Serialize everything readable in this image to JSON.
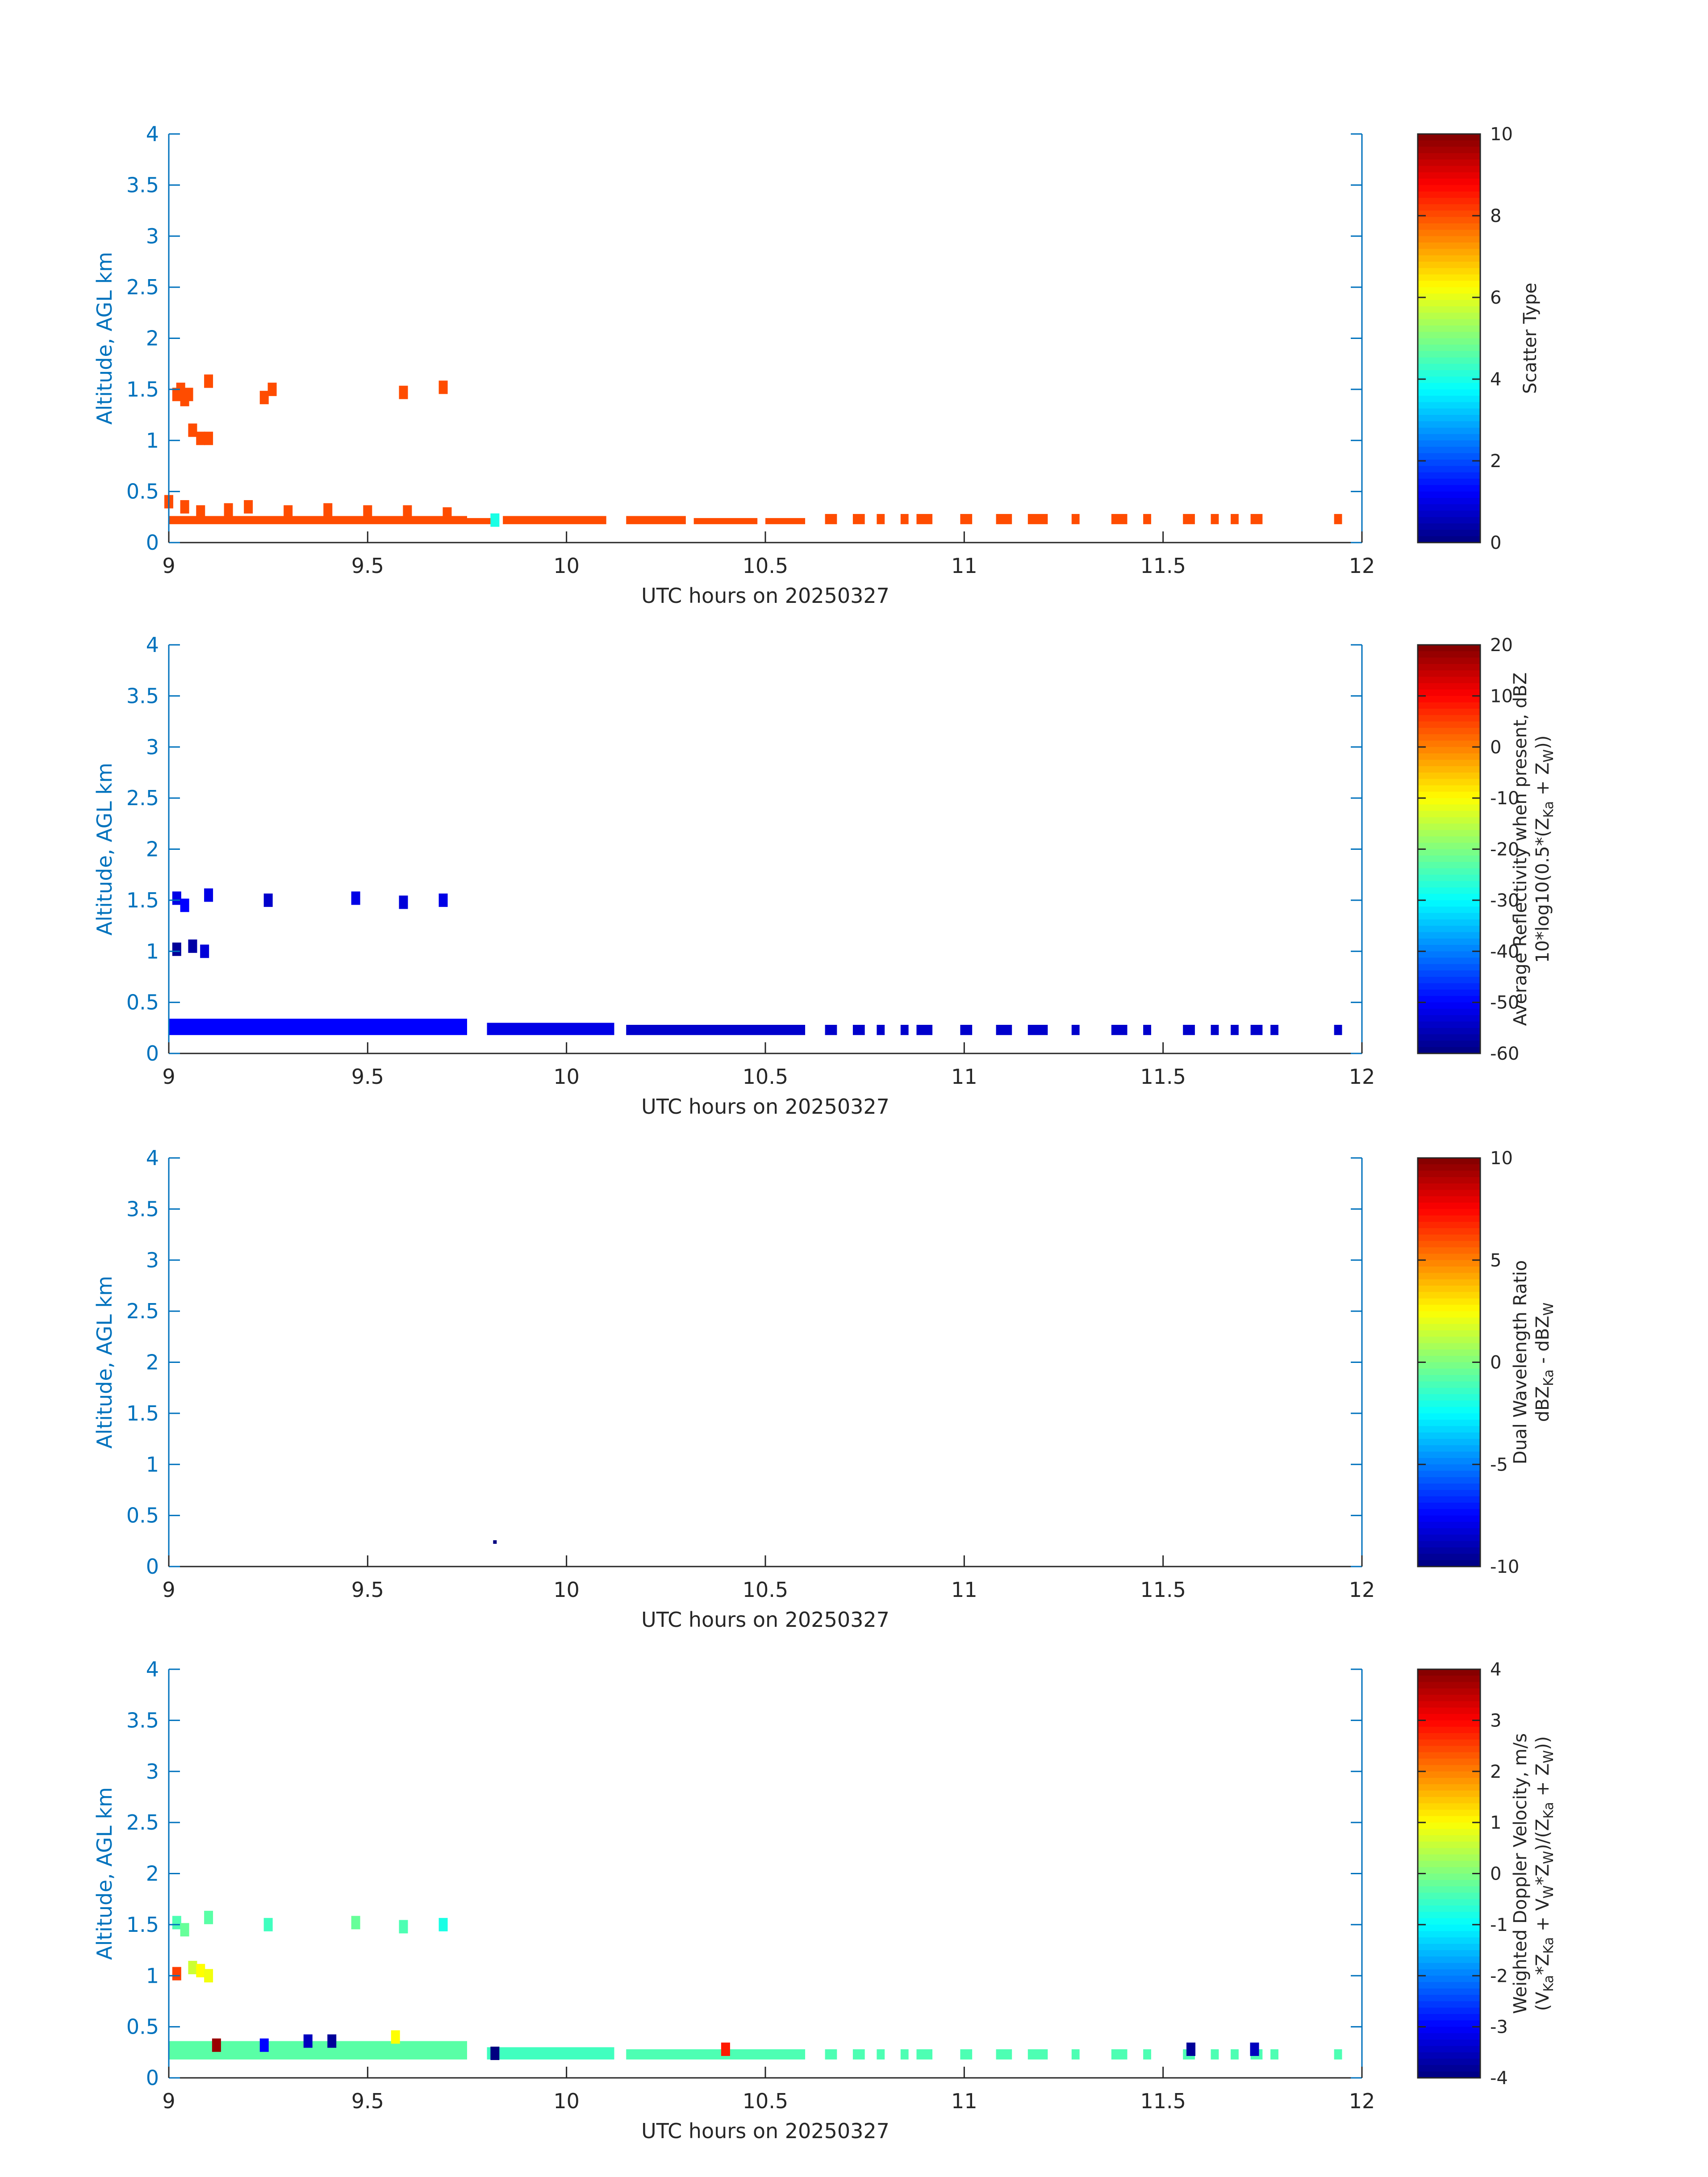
{
  "chart_data": [
    {
      "type": "heatmap",
      "xlabel": "UTC hours on 20250327",
      "ylabel": "Altitude, AGL km",
      "xlim": [
        9,
        12
      ],
      "ylim": [
        0,
        4
      ],
      "xticks": [
        "9",
        "9.5",
        "10",
        "10.5",
        "11",
        "11.5",
        "12"
      ],
      "yticks": [
        "0",
        "0.5",
        "1",
        "1.5",
        "2",
        "2.5",
        "3",
        "3.5",
        "4"
      ],
      "colorbar": {
        "label_lines": [
          "Scatter Type"
        ],
        "clim": [
          0,
          10
        ],
        "ticks": [
          "0",
          "2",
          "4",
          "6",
          "8",
          "10"
        ]
      },
      "cells": [
        [
          9.02,
          1.45,
          8
        ],
        [
          9.03,
          1.5,
          8
        ],
        [
          9.04,
          1.4,
          8
        ],
        [
          9.05,
          1.45,
          8
        ],
        [
          9.1,
          1.58,
          8
        ],
        [
          9.24,
          1.42,
          8
        ],
        [
          9.26,
          1.5,
          8
        ],
        [
          9.59,
          1.47,
          8
        ],
        [
          9.69,
          1.52,
          8
        ],
        [
          9.06,
          1.1,
          8
        ],
        [
          9.08,
          1.02,
          8
        ],
        [
          9.1,
          1.02,
          8
        ],
        [
          9.0,
          0.4,
          8
        ],
        [
          9.04,
          0.35,
          8
        ],
        [
          9.08,
          0.3,
          8
        ],
        [
          9.15,
          0.32,
          8
        ],
        [
          9.2,
          0.35,
          8
        ],
        [
          9.3,
          0.3,
          8
        ],
        [
          9.4,
          0.32,
          8
        ],
        [
          9.5,
          0.3,
          8
        ],
        [
          9.6,
          0.3,
          8
        ],
        [
          9.7,
          0.28,
          8
        ],
        [
          9.82,
          0.22,
          4
        ]
      ],
      "bands": [
        [
          9.0,
          9.75,
          0.18,
          0.26,
          8
        ],
        [
          9.75,
          9.82,
          0.18,
          0.24,
          8
        ],
        [
          9.84,
          10.1,
          0.18,
          0.26,
          8
        ],
        [
          10.15,
          10.3,
          0.18,
          0.26,
          8
        ],
        [
          10.32,
          10.48,
          0.18,
          0.24,
          8
        ],
        [
          10.5,
          10.6,
          0.18,
          0.24,
          8
        ]
      ],
      "segments": [
        [
          10.65,
          10.68
        ],
        [
          10.72,
          10.75
        ],
        [
          10.78,
          10.8
        ],
        [
          10.84,
          10.86
        ],
        [
          10.88,
          10.92
        ],
        [
          10.99,
          11.02
        ],
        [
          11.08,
          11.12
        ],
        [
          11.16,
          11.21
        ],
        [
          11.27,
          11.29
        ],
        [
          11.37,
          11.41
        ],
        [
          11.45,
          11.47
        ],
        [
          11.55,
          11.58
        ],
        [
          11.62,
          11.64
        ],
        [
          11.67,
          11.69
        ],
        [
          11.72,
          11.75
        ],
        [
          11.93,
          11.95
        ]
      ]
    },
    {
      "type": "heatmap",
      "xlabel": "UTC hours on 20250327",
      "ylabel": "Altitude, AGL km",
      "xlim": [
        9,
        12
      ],
      "ylim": [
        0,
        4
      ],
      "xticks": [
        "9",
        "9.5",
        "10",
        "10.5",
        "11",
        "11.5",
        "12"
      ],
      "yticks": [
        "0",
        "0.5",
        "1",
        "1.5",
        "2",
        "2.5",
        "3",
        "3.5",
        "4"
      ],
      "colorbar": {
        "label_lines": [
          "Average Reflectivity when present, dBZ",
          "10*log10(0.5*(Z",
          "Ka",
          " + Z",
          "W",
          "))"
        ],
        "clim": [
          -60,
          20
        ],
        "ticks": [
          "-60",
          "-50",
          "-40",
          "-30",
          "-20",
          "-10",
          "0",
          "10",
          "20"
        ]
      },
      "cells": [
        [
          9.02,
          1.52,
          -52
        ],
        [
          9.04,
          1.45,
          -50
        ],
        [
          9.1,
          1.55,
          -52
        ],
        [
          9.25,
          1.5,
          -54
        ],
        [
          9.47,
          1.52,
          -52
        ],
        [
          9.59,
          1.48,
          -53
        ],
        [
          9.69,
          1.5,
          -52
        ],
        [
          9.02,
          1.02,
          -58
        ],
        [
          9.06,
          1.05,
          -57
        ],
        [
          9.09,
          1.0,
          -53
        ]
      ],
      "bands": [
        [
          9.0,
          9.75,
          0.18,
          0.34,
          -50
        ],
        [
          9.8,
          10.12,
          0.18,
          0.3,
          -52
        ],
        [
          10.15,
          10.6,
          0.18,
          0.28,
          -54
        ]
      ],
      "segments": [
        [
          10.65,
          10.68
        ],
        [
          10.72,
          10.75
        ],
        [
          10.78,
          10.8
        ],
        [
          10.84,
          10.86
        ],
        [
          10.88,
          10.92
        ],
        [
          10.99,
          11.02
        ],
        [
          11.08,
          11.12
        ],
        [
          11.16,
          11.21
        ],
        [
          11.27,
          11.29
        ],
        [
          11.37,
          11.41
        ],
        [
          11.45,
          11.47
        ],
        [
          11.55,
          11.58
        ],
        [
          11.62,
          11.64
        ],
        [
          11.67,
          11.69
        ],
        [
          11.72,
          11.75
        ],
        [
          11.77,
          11.79
        ],
        [
          11.93,
          11.95
        ]
      ]
    },
    {
      "type": "heatmap",
      "xlabel": "UTC hours on 20250327",
      "ylabel": "Altitude, AGL km",
      "xlim": [
        9,
        12
      ],
      "ylim": [
        0,
        4
      ],
      "xticks": [
        "9",
        "9.5",
        "10",
        "10.5",
        "11",
        "11.5",
        "12"
      ],
      "yticks": [
        "0",
        "0.5",
        "1",
        "1.5",
        "2",
        "2.5",
        "3",
        "3.5",
        "4"
      ],
      "colorbar": {
        "label_lines": [
          "Dual Wavelength Ratio",
          "dBZ",
          "Ka",
          " - dBZ",
          "W"
        ],
        "clim": [
          -10,
          10
        ],
        "ticks": [
          "-10",
          "-5",
          "0",
          "5",
          "10"
        ]
      },
      "cells": [
        [
          9.82,
          0.24,
          -10
        ]
      ],
      "bands": [],
      "segments": []
    },
    {
      "type": "heatmap",
      "xlabel": "UTC hours on 20250327",
      "ylabel": "Altitude, AGL km",
      "xlim": [
        9,
        12
      ],
      "ylim": [
        0,
        4
      ],
      "xticks": [
        "9",
        "9.5",
        "10",
        "10.5",
        "11",
        "11.5",
        "12"
      ],
      "yticks": [
        "0",
        "0.5",
        "1",
        "1.5",
        "2",
        "2.5",
        "3",
        "3.5",
        "4"
      ],
      "colorbar": {
        "label_lines": [
          "Weighted Doppler Velocity, m/s",
          "(V",
          "Ka",
          "*Z",
          "Ka",
          " + V",
          "W",
          "*Z",
          "W",
          ")/(Z",
          "Ka",
          " + Z",
          "W",
          "))"
        ],
        "clim": [
          -4,
          4
        ],
        "ticks": [
          "-4",
          "-3",
          "-2",
          "-1",
          "0",
          "1",
          "2",
          "3",
          "4"
        ]
      },
      "cells": [
        [
          9.02,
          1.52,
          -0.4
        ],
        [
          9.04,
          1.45,
          -0.2
        ],
        [
          9.1,
          1.57,
          -0.3
        ],
        [
          9.25,
          1.5,
          -0.5
        ],
        [
          9.47,
          1.52,
          -0.2
        ],
        [
          9.59,
          1.48,
          -0.4
        ],
        [
          9.69,
          1.5,
          -0.8
        ],
        [
          9.02,
          1.02,
          2.5
        ],
        [
          9.06,
          1.08,
          0.6
        ],
        [
          9.08,
          1.05,
          1.0
        ],
        [
          9.1,
          1.0,
          0.9
        ],
        [
          9.12,
          0.32,
          3.8
        ],
        [
          9.24,
          0.32,
          -3.0
        ],
        [
          9.35,
          0.36,
          -3.5
        ],
        [
          9.41,
          0.36,
          -3.8
        ],
        [
          9.57,
          0.4,
          1.0
        ],
        [
          9.82,
          0.24,
          -4.0
        ],
        [
          10.4,
          0.28,
          2.8
        ],
        [
          11.57,
          0.28,
          -3.8
        ],
        [
          11.73,
          0.28,
          -3.5
        ]
      ],
      "bands": [
        [
          9.0,
          9.75,
          0.18,
          0.36,
          -0.3
        ],
        [
          9.8,
          10.12,
          0.18,
          0.3,
          -0.5
        ],
        [
          10.15,
          10.6,
          0.18,
          0.28,
          -0.4
        ]
      ],
      "segments": [
        [
          10.65,
          10.68
        ],
        [
          10.72,
          10.75
        ],
        [
          10.78,
          10.8
        ],
        [
          10.84,
          10.86
        ],
        [
          10.88,
          10.92
        ],
        [
          10.99,
          11.02
        ],
        [
          11.08,
          11.12
        ],
        [
          11.16,
          11.21
        ],
        [
          11.27,
          11.29
        ],
        [
          11.37,
          11.41
        ],
        [
          11.45,
          11.47
        ],
        [
          11.55,
          11.58
        ],
        [
          11.62,
          11.64
        ],
        [
          11.67,
          11.69
        ],
        [
          11.72,
          11.75
        ],
        [
          11.77,
          11.79
        ],
        [
          11.93,
          11.95
        ]
      ]
    }
  ]
}
